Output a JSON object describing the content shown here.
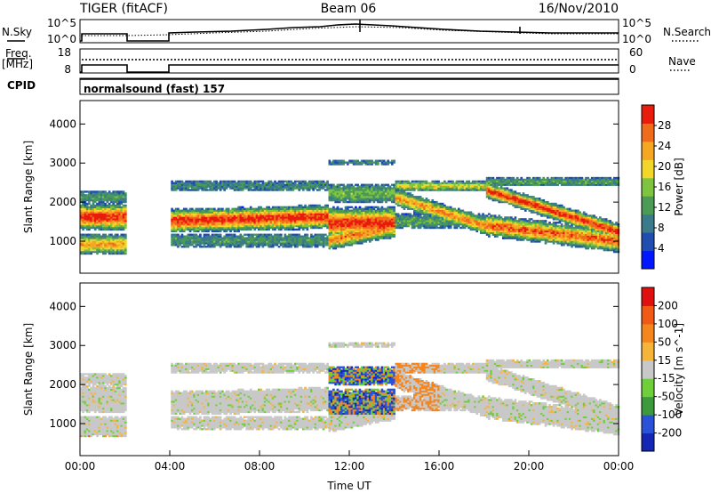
{
  "header": {
    "title": "TIGER (fitACF)",
    "beam": "Beam 06",
    "date": "16/Nov/2010"
  },
  "params": {
    "nsky_label": "N.Sky",
    "nsky_ticks": [
      "10^5",
      "10^0"
    ],
    "nsearch_label": "N.Search",
    "nsearch_ticks": [
      "10^5",
      "10^0"
    ],
    "freq_label": "Freq.",
    "freq_unit": "[MHz]",
    "freq_ticks": [
      "18",
      "8"
    ],
    "nave_label": "Nave",
    "nave_ticks": [
      "60",
      "0"
    ],
    "cpid_label": "CPID",
    "cpid_value": "normalsound (fast) 157"
  },
  "chart_data": [
    {
      "type": "heatmap",
      "name": "power",
      "ylabel": "Slant Range [km]",
      "y_ticks": [
        "4000",
        "3000",
        "2000",
        "1000"
      ],
      "ylim": [
        180,
        4600
      ],
      "colorbar_label": "Power [dB]",
      "colorbar_ticks": [
        "28",
        "24",
        "20",
        "16",
        "12",
        "8",
        "4"
      ],
      "colorbar_range": [
        0,
        30
      ],
      "colors": [
        "#0018ff",
        "#1f4db0",
        "#3a7a8a",
        "#4b9a55",
        "#7fc440",
        "#f2d62a",
        "#f5a623",
        "#f06b1a",
        "#e81c0c"
      ],
      "data_gap_ut": [
        [
          2.0,
          4.0
        ]
      ]
    },
    {
      "type": "heatmap",
      "name": "velocity",
      "xlabel": "Time UT",
      "ylabel": "Slant Range [km]",
      "y_ticks": [
        "4000",
        "3000",
        "2000",
        "1000"
      ],
      "ylim": [
        180,
        4600
      ],
      "x_ticks": [
        "00:00",
        "04:00",
        "08:00",
        "12:00",
        "16:00",
        "20:00",
        "00:00"
      ],
      "xlim": [
        0,
        24
      ],
      "colorbar_label": "Velocity [m s^-1]",
      "colorbar_ticks": [
        "200",
        "100",
        "50",
        "15",
        "-15",
        "-50",
        "-100",
        "-200"
      ],
      "colorbar_range": [
        -250,
        250
      ],
      "colors": [
        "#1426b4",
        "#2a52d8",
        "#3c9a3c",
        "#6fcf3a",
        "#c8c8c8",
        "#f5b43a",
        "#f5861e",
        "#f05a14",
        "#e01010"
      ],
      "data_gap_ut": [
        [
          2.0,
          4.0
        ]
      ]
    }
  ]
}
